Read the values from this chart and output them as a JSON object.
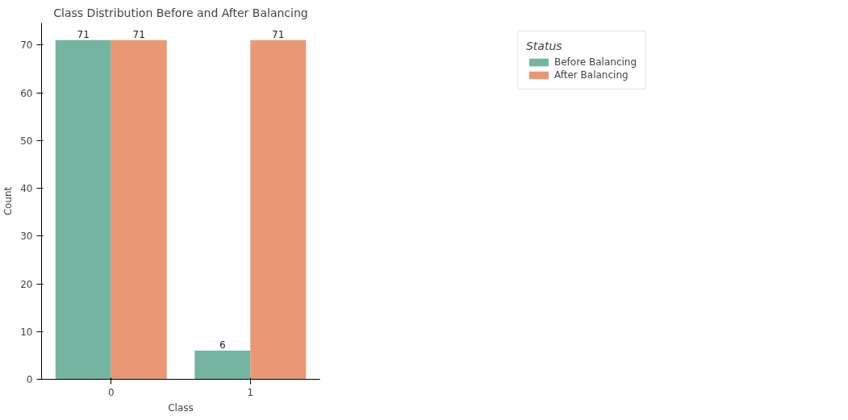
{
  "chart_data": {
    "type": "bar",
    "title": "Class Distribution Before and After Balancing",
    "xlabel": "Class",
    "ylabel": "Count",
    "legend_title": "Status",
    "categories": [
      "0",
      "1"
    ],
    "series": [
      {
        "name": "Before Balancing",
        "color": "#74b4a0",
        "values": [
          71,
          6
        ]
      },
      {
        "name": "After Balancing",
        "color": "#e99875",
        "values": [
          71,
          71
        ]
      }
    ],
    "ylim": [
      0,
      74.6
    ],
    "yticks": [
      0,
      10,
      20,
      30,
      40,
      50,
      60,
      70
    ],
    "grid": false,
    "legend": "top right",
    "data_labels": true
  }
}
